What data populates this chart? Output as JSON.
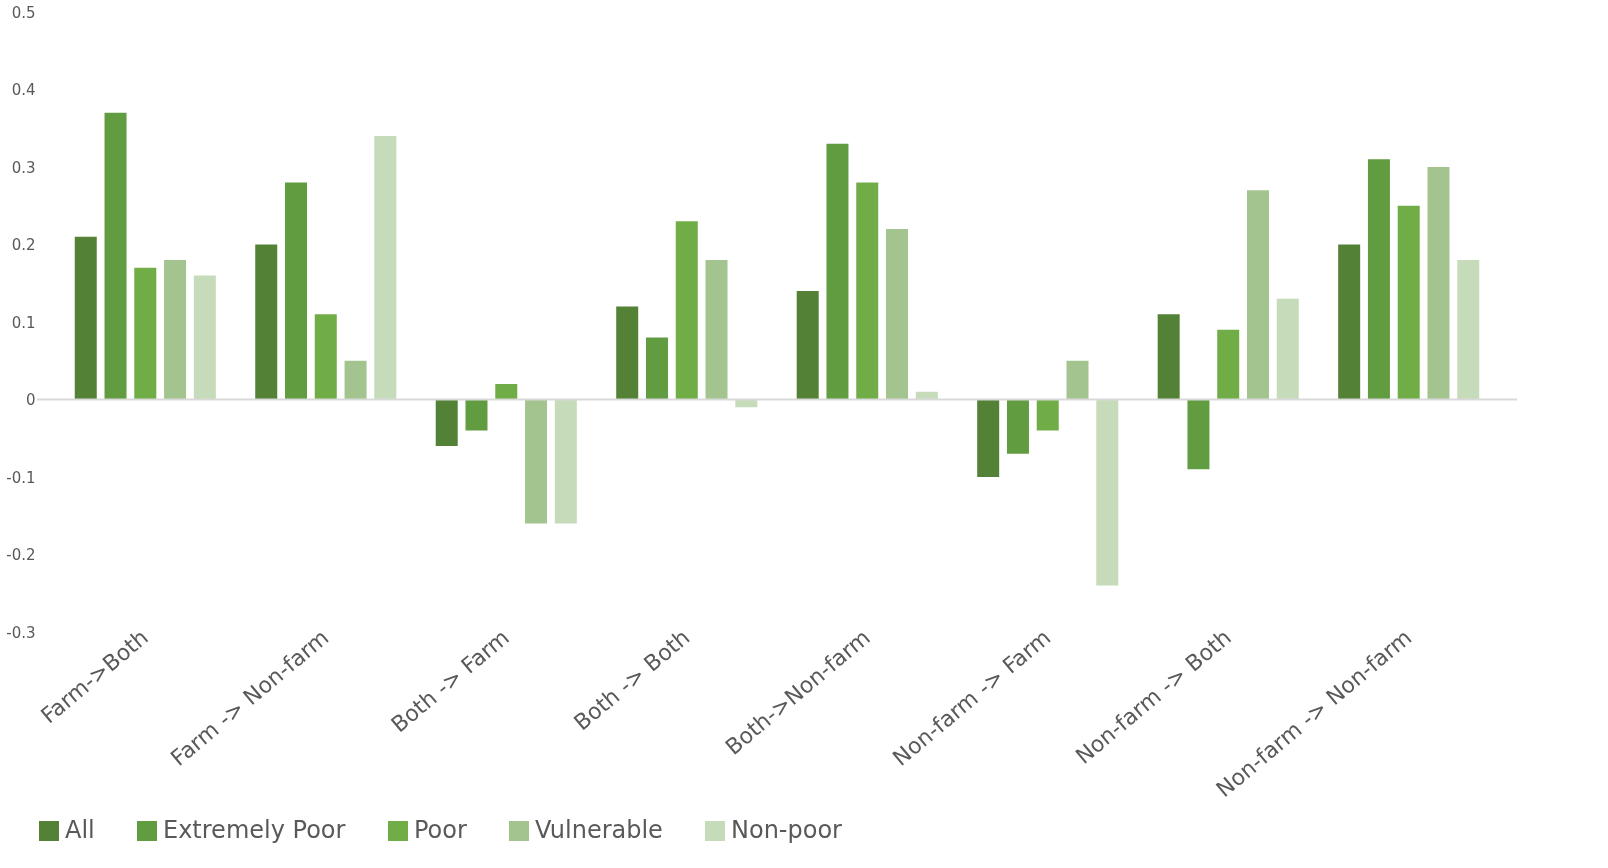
{
  "chart_data": {
    "type": "bar",
    "categories": [
      "Farm->Both",
      "Farm -> Non-farm",
      "Both -> Farm",
      "Both -> Both",
      "Both->Non-farm",
      "Non-farm -> Farm",
      "Non-farm -> Both",
      "Non-farm -> Non-farm"
    ],
    "series": [
      {
        "name": "All",
        "color": "#538135",
        "values": [
          0.21,
          0.2,
          -0.06,
          0.12,
          0.14,
          -0.1,
          0.11,
          0.2
        ]
      },
      {
        "name": "Extremely Poor",
        "color": "#629c40",
        "values": [
          0.37,
          0.28,
          -0.04,
          0.08,
          0.33,
          -0.07,
          -0.09,
          0.31
        ]
      },
      {
        "name": "Poor",
        "color": "#70ad47",
        "values": [
          0.17,
          0.11,
          0.02,
          0.23,
          0.28,
          -0.04,
          0.09,
          0.25
        ]
      },
      {
        "name": "Vulnerable",
        "color": "#a3c48f",
        "values": [
          0.18,
          0.05,
          -0.16,
          0.18,
          0.22,
          0.05,
          0.27,
          0.3
        ]
      },
      {
        "name": "Non-poor",
        "color": "#c5dbb9",
        "values": [
          0.16,
          0.34,
          -0.16,
          -0.01,
          0.01,
          -0.24,
          0.13,
          0.18
        ]
      }
    ],
    "ylim": [
      -0.3,
      0.5
    ],
    "yticks": [
      -0.3,
      -0.2,
      -0.1,
      0,
      0.1,
      0.2,
      0.3,
      0.4,
      0.5
    ],
    "ref_lines": [
      {
        "axis": "y",
        "value": 0,
        "color": "#d9d9d9"
      }
    ],
    "grid": false,
    "legend": "bottom"
  }
}
